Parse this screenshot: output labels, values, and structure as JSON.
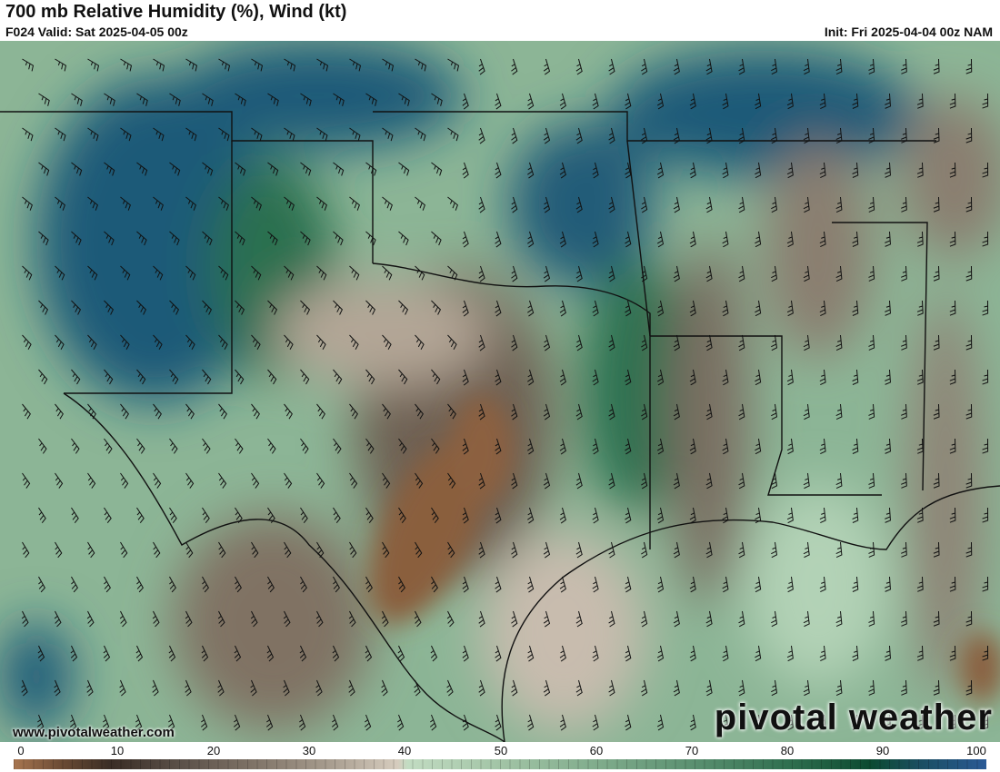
{
  "header": {
    "title": "700 mb Relative Humidity (%), Wind (kt)",
    "valid": "F024 Valid: Sat 2025-04-05 00z",
    "init": "Init: Fri 2025-04-04 00z NAM"
  },
  "map": {
    "field": "relative humidity",
    "overlay": "wind barbs",
    "region": "South-central United States"
  },
  "watermark": {
    "url": "www.pivotalweather.com",
    "logo": "pivotal weather"
  },
  "colorbar": {
    "labels": [
      "0",
      "10",
      "20",
      "30",
      "40",
      "50",
      "60",
      "70",
      "80",
      "90",
      "100"
    ],
    "colors": {
      "dry": "#a87650",
      "neutral": "#d6ccbe",
      "moist": "#5a9070",
      "saturated": "#2a5a96"
    }
  }
}
